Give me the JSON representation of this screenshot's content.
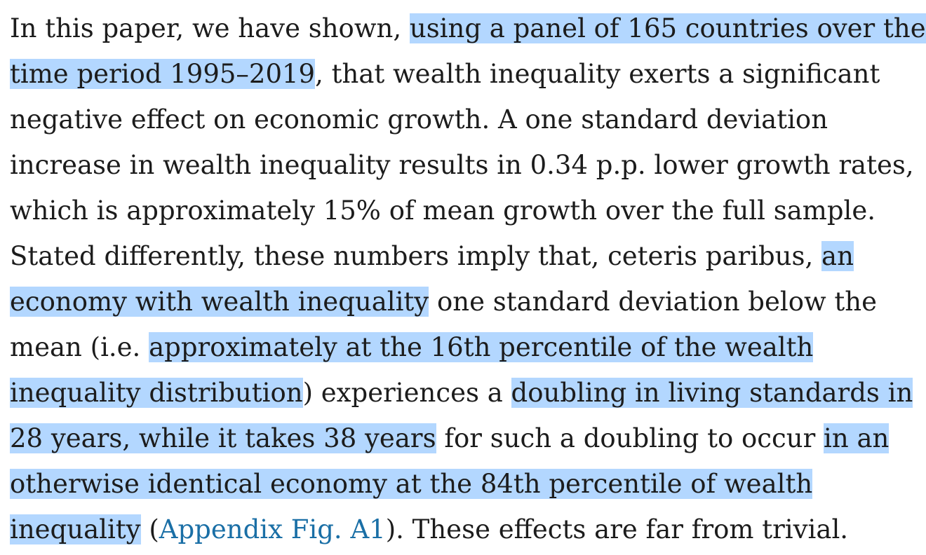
{
  "paragraph": {
    "line1": {
      "a": "In this paper, we have shown, ",
      "hl": "using a panel of 165 countries over the"
    },
    "line2": {
      "hl": "time period 1995–2019",
      "b": ", that wealth inequality exerts a significant"
    },
    "line3": {
      "a": "negative effect on economic growth. A one standard deviation"
    },
    "line4": {
      "a": "increase in wealth inequality results in 0.34 p.p. lower growth rates,"
    },
    "line5": {
      "a": "which is approximately 15% of mean growth over the full sample."
    },
    "line6": {
      "a": "Stated differently, these numbers imply that, ceteris paribus, ",
      "hl": "an"
    },
    "line7": {
      "hl": "economy with wealth inequality",
      "b": " one standard deviation below the"
    },
    "line8": {
      "a": "mean (i.e. ",
      "hl": "approximately at the 16th percentile of the wealth"
    },
    "line9": {
      "hl1": "inequality distribution",
      "b": ") experiences a ",
      "hl2": "doubling in living standards in"
    },
    "line10": {
      "hl1": "28 years, while it takes 38 years",
      "b": " for such a doubling to occur ",
      "hl2": "in an"
    },
    "line11": {
      "hl": "otherwise identical economy at the 84th percentile of wealth"
    },
    "line12": {
      "hl": "inequality",
      "b": " (",
      "link": "Appendix Fig. A1",
      "c": "). These effects are far from trivial."
    }
  }
}
